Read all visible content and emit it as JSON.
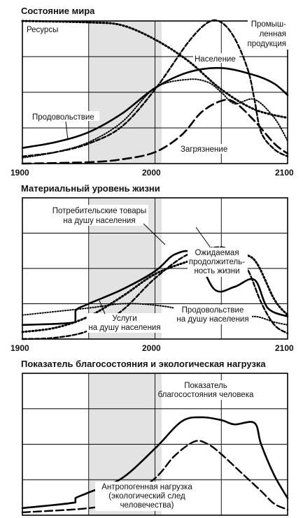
{
  "chart_data": [
    {
      "type": "line",
      "title": "Состояние мира",
      "x_ticks": [
        "1900",
        "2000",
        "2100"
      ],
      "xlim": [
        1900,
        2100
      ],
      "grid": true,
      "shaded_period": [
        1950,
        2005
      ],
      "series": [
        {
          "name": "Ресурсы",
          "style": "dotted",
          "x": [
            1900,
            1950,
            1975,
            2000,
            2025,
            2050,
            2075,
            2100
          ],
          "y": [
            1.0,
            0.99,
            0.97,
            0.87,
            0.72,
            0.52,
            0.38,
            0.32
          ]
        },
        {
          "name": "Промышленная продукция",
          "style": "short-dash",
          "x": [
            1900,
            1925,
            1950,
            1975,
            2000,
            2025,
            2040,
            2050,
            2060,
            2070,
            2075,
            2080,
            2090,
            2100
          ],
          "y": [
            0.05,
            0.08,
            0.14,
            0.26,
            0.52,
            0.85,
            0.99,
            0.99,
            0.88,
            0.66,
            0.45,
            0.22,
            0.1,
            0.05
          ]
        },
        {
          "name": "Население",
          "style": "solid",
          "x": [
            1900,
            1925,
            1950,
            1975,
            2000,
            2025,
            2050,
            2075,
            2090,
            2100
          ],
          "y": [
            0.11,
            0.15,
            0.22,
            0.35,
            0.53,
            0.64,
            0.67,
            0.62,
            0.56,
            0.48
          ]
        },
        {
          "name": "Продовольствие",
          "style": "fine-dot",
          "x": [
            1900,
            1925,
            1950,
            1975,
            2000,
            2025,
            2040,
            2050,
            2060,
            2075,
            2090,
            2100
          ],
          "y": [
            0.04,
            0.08,
            0.15,
            0.29,
            0.53,
            0.59,
            0.57,
            0.5,
            0.42,
            0.45,
            0.32,
            0.16
          ]
        },
        {
          "name": "Загрязнение",
          "style": "long-dash",
          "x": [
            1900,
            1950,
            1975,
            2000,
            2020,
            2035,
            2050,
            2060,
            2075,
            2090,
            2100
          ],
          "y": [
            0.0,
            0.01,
            0.03,
            0.08,
            0.2,
            0.36,
            0.44,
            0.43,
            0.3,
            0.14,
            0.07
          ]
        }
      ],
      "annotations": [
        "Ресурсы",
        "Промыш-",
        "ленная",
        "продукция",
        "Население",
        "Продовольствие",
        "Загрязнение"
      ]
    },
    {
      "type": "line",
      "title": "Материальный уровень жизни",
      "x_ticks": [
        "1900",
        "2000",
        "2100"
      ],
      "xlim": [
        1900,
        2100
      ],
      "grid": true,
      "shaded_period": [
        1950,
        2005
      ],
      "series": [
        {
          "name": "Потребительские товары на душу населения",
          "style": "solid",
          "x": [
            1900,
            1940,
            1940,
            1950,
            1975,
            2000,
            2015,
            2030,
            2045,
            2060,
            2075,
            2085,
            2100
          ],
          "y": [
            0.1,
            0.12,
            0.2,
            0.25,
            0.35,
            0.48,
            0.6,
            0.6,
            0.35,
            0.37,
            0.42,
            0.22,
            0.16
          ]
        },
        {
          "name": "Ожидаемая продолжительность жизни",
          "style": "dotted",
          "x": [
            1900,
            1925,
            1950,
            1975,
            2000,
            2025,
            2050,
            2060,
            2075,
            2090,
            2100
          ],
          "y": [
            0.05,
            0.08,
            0.16,
            0.3,
            0.46,
            0.55,
            0.62,
            0.6,
            0.56,
            0.28,
            0.17
          ]
        },
        {
          "name": "Услуги на душу населения",
          "style": "short-dash",
          "x": [
            1900,
            1925,
            1950,
            1975,
            2000,
            2025,
            2050,
            2060,
            2070,
            2080,
            2090,
            2100
          ],
          "y": [
            0.0,
            0.01,
            0.06,
            0.2,
            0.43,
            0.6,
            0.65,
            0.59,
            0.49,
            0.26,
            0.1,
            0.04
          ]
        },
        {
          "name": "Продовольствие на душу населения",
          "style": "fine-dot",
          "x": [
            1900,
            1950,
            1975,
            2000,
            2025,
            2040,
            2050,
            2060,
            2075,
            2090,
            2100
          ],
          "y": [
            0.17,
            0.22,
            0.25,
            0.24,
            0.2,
            0.15,
            0.11,
            0.13,
            0.16,
            0.12,
            0.1
          ]
        }
      ],
      "annotations": [
        "Потребительские товары",
        "на душу населения",
        "Ожидаемая",
        "продолжитель-",
        "ность жизни",
        "Услуги",
        "на душу населения",
        "Продовольствие",
        "на душу населения"
      ]
    },
    {
      "type": "line",
      "title": "Показатель благосостояния и экологическая нагрузка",
      "xlim": [
        1900,
        2100
      ],
      "grid": true,
      "shaded_period": [
        1950,
        2005
      ],
      "series": [
        {
          "name": "Показатель благосостояния человека",
          "style": "solid",
          "x": [
            1900,
            1940,
            1940,
            1950,
            1975,
            2000,
            2020,
            2035,
            2050,
            2060,
            2075,
            2080,
            2090,
            2100
          ],
          "y": [
            0.05,
            0.09,
            0.12,
            0.16,
            0.26,
            0.47,
            0.66,
            0.69,
            0.67,
            0.64,
            0.65,
            0.5,
            0.28,
            0.12
          ]
        },
        {
          "name": "Антропогенная нагрузка (экологический след человечества)",
          "style": "dashed",
          "x": [
            1900,
            1950,
            1975,
            2000,
            2015,
            2030,
            2040,
            2050,
            2065,
            2080,
            2090,
            2100
          ],
          "y": [
            0.02,
            0.05,
            0.1,
            0.26,
            0.42,
            0.52,
            0.5,
            0.43,
            0.3,
            0.17,
            0.08,
            0.04
          ]
        }
      ],
      "annotations": [
        "Показатель",
        "благосостояния человека",
        "Антропогенная нагрузка",
        "(экологический след",
        "человечества)"
      ]
    }
  ]
}
